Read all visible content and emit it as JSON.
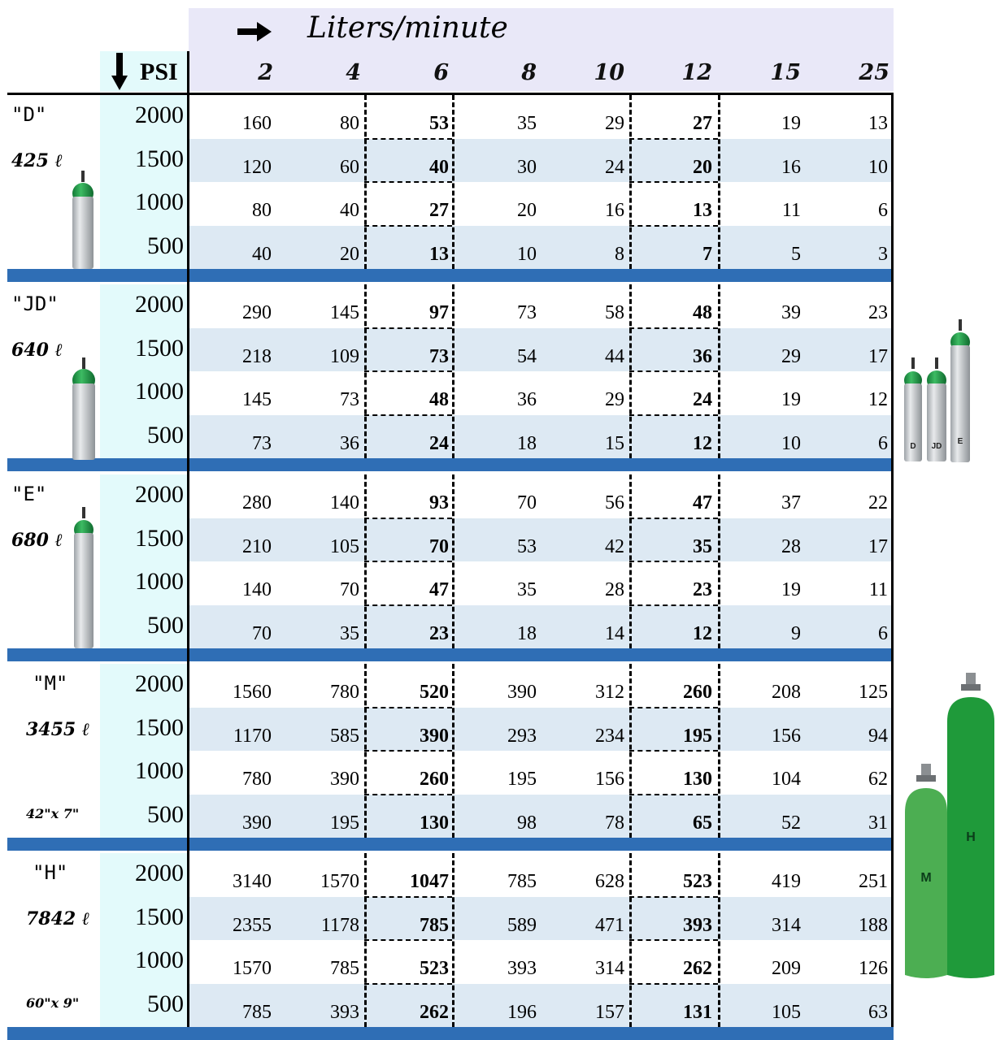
{
  "header": {
    "title": "Liters/minute",
    "psi_label": "PSI",
    "flow_rates": [
      "2",
      "4",
      "6",
      "8",
      "10",
      "12",
      "15",
      "25"
    ]
  },
  "psi_levels": [
    "2000",
    "1500",
    "1000",
    "500"
  ],
  "cylinders": [
    {
      "name": "\"D\"",
      "volume": "425 ℓ",
      "dimensions": "",
      "rows": [
        [
          "160",
          "80",
          "53",
          "35",
          "29",
          "27",
          "19",
          "13"
        ],
        [
          "120",
          "60",
          "40",
          "30",
          "24",
          "20",
          "16",
          "10"
        ],
        [
          "80",
          "40",
          "27",
          "20",
          "16",
          "13",
          "11",
          "6"
        ],
        [
          "40",
          "20",
          "13",
          "10",
          "8",
          "7",
          "5",
          "3"
        ]
      ]
    },
    {
      "name": "\"JD\"",
      "volume": "640 ℓ",
      "dimensions": "",
      "rows": [
        [
          "290",
          "145",
          "97",
          "73",
          "58",
          "48",
          "39",
          "23"
        ],
        [
          "218",
          "109",
          "73",
          "54",
          "44",
          "36",
          "29",
          "17"
        ],
        [
          "145",
          "73",
          "48",
          "36",
          "29",
          "24",
          "19",
          "12"
        ],
        [
          "73",
          "36",
          "24",
          "18",
          "15",
          "12",
          "10",
          "6"
        ]
      ]
    },
    {
      "name": "\"E\"",
      "volume": "680 ℓ",
      "dimensions": "",
      "rows": [
        [
          "280",
          "140",
          "93",
          "70",
          "56",
          "47",
          "37",
          "22"
        ],
        [
          "210",
          "105",
          "70",
          "53",
          "42",
          "35",
          "28",
          "17"
        ],
        [
          "140",
          "70",
          "47",
          "35",
          "28",
          "23",
          "19",
          "11"
        ],
        [
          "70",
          "35",
          "23",
          "18",
          "14",
          "12",
          "9",
          "6"
        ]
      ]
    },
    {
      "name": "\"M\"",
      "volume": "3455 ℓ",
      "dimensions": "42\"x 7\"",
      "rows": [
        [
          "1560",
          "780",
          "520",
          "390",
          "312",
          "260",
          "208",
          "125"
        ],
        [
          "1170",
          "585",
          "390",
          "293",
          "234",
          "195",
          "156",
          "94"
        ],
        [
          "780",
          "390",
          "260",
          "195",
          "156",
          "130",
          "104",
          "62"
        ],
        [
          "390",
          "195",
          "130",
          "98",
          "78",
          "65",
          "52",
          "31"
        ]
      ]
    },
    {
      "name": "\"H\"",
      "volume": "7842 ℓ",
      "dimensions": "60\"x 9\"",
      "rows": [
        [
          "3140",
          "1570",
          "1047",
          "785",
          "628",
          "523",
          "419",
          "251"
        ],
        [
          "2355",
          "1178",
          "785",
          "589",
          "471",
          "393",
          "314",
          "188"
        ],
        [
          "1570",
          "785",
          "523",
          "393",
          "314",
          "262",
          "209",
          "126"
        ],
        [
          "785",
          "393",
          "262",
          "196",
          "157",
          "131",
          "105",
          "63"
        ]
      ]
    }
  ],
  "side_images": {
    "small_cylinders_labels": [
      "D",
      "JD",
      "E"
    ],
    "large_cylinders_labels": [
      "M",
      "H"
    ]
  },
  "colors": {
    "header_band": "#e9e8f8",
    "psi_column": "#e3fafb",
    "row_stripe": "#dde9f3",
    "separator_bar": "#2f6eb5",
    "cylinder_green": "#1f9a4a",
    "cylinder_silver": "#c9ccd0"
  },
  "icons": [
    "arrow-right-icon",
    "arrow-down-icon",
    "cylinder-icon"
  ]
}
